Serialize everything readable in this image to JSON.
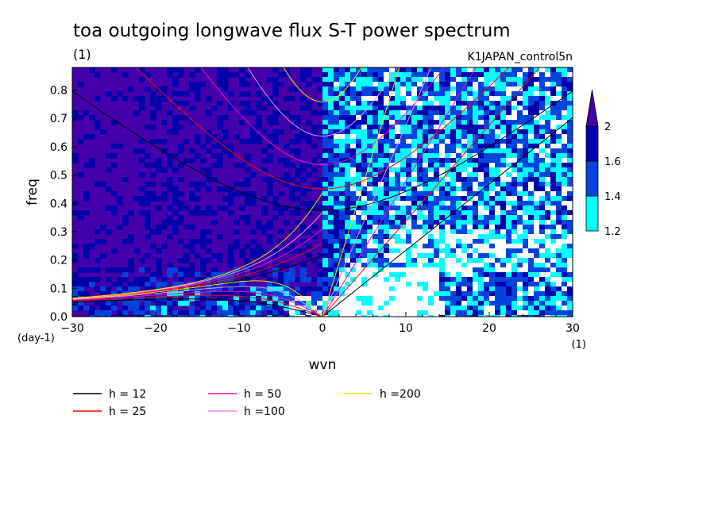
{
  "chart_data": {
    "type": "heatmap",
    "title": "toa outgoing longwave flux S-T power spectrum",
    "subtitle_left": "(1)",
    "subtitle_right": "K1JAPAN_control5n",
    "xlabel": "wvn",
    "ylabel": "freq",
    "x_unit": "(1)",
    "y_unit": "(day-1)",
    "xlim": [
      -30,
      30
    ],
    "ylim": [
      0,
      0.88
    ],
    "x_ticks": [
      -30,
      -20,
      -10,
      0,
      10,
      20,
      30
    ],
    "x_tick_labels": [
      "−30",
      "−20",
      "−10",
      "0",
      "10",
      "20",
      "30"
    ],
    "y_ticks": [
      0.0,
      0.1,
      0.2,
      0.3,
      0.4,
      0.5,
      0.6,
      0.7,
      0.8
    ],
    "y_tick_labels": [
      "0.0",
      "0.1",
      "0.2",
      "0.3",
      "0.4",
      "0.5",
      "0.6",
      "0.7",
      "0.8"
    ],
    "colorbar": {
      "levels": [
        1.2,
        1.4,
        1.6,
        2
      ],
      "level_labels": [
        "1.2",
        "1.4",
        "1.6",
        "2"
      ],
      "colors": [
        "#ffffff",
        "#00ffff",
        "#0044dd",
        "#0000aa",
        "#4400aa"
      ]
    },
    "dispersion_curves": [
      {
        "label": "h = 12",
        "h": 12,
        "color": "#000000"
      },
      {
        "label": "h = 25",
        "h": 25,
        "color": "#ff0000"
      },
      {
        "label": "h = 50",
        "h": 50,
        "color": "#ff00cc"
      },
      {
        "label": "h =100",
        "h": 100,
        "color": "#ee88ee"
      },
      {
        "label": "h =200",
        "h": 200,
        "color": "#ffdd00"
      }
    ]
  }
}
